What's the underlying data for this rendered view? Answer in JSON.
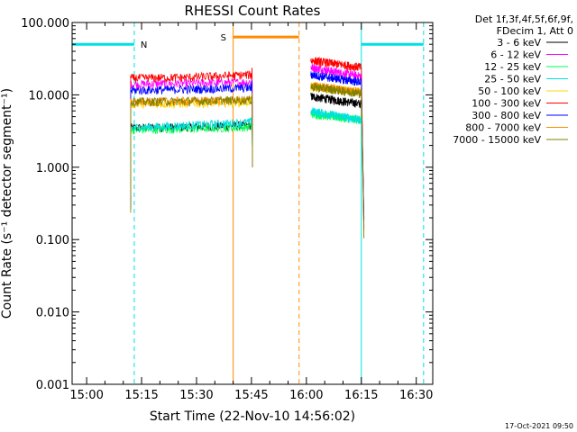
{
  "chart_data": {
    "type": "line",
    "title": "RHESSI Count Rates",
    "xlabel": "Start Time (22-Nov-10 14:56:02)",
    "ylabel": "Count Rate (s⁻¹ detector segment⁻¹)",
    "y_scale": "log",
    "ylim": [
      0.001,
      100
    ],
    "xlim": [
      "14:56:02",
      "16:34:30"
    ],
    "y_ticks": [
      "0.001",
      "0.010",
      "0.100",
      "1.000",
      "10.000",
      "100.000"
    ],
    "x_ticks": [
      "15:00",
      "15:15",
      "15:30",
      "15:45",
      "16:00",
      "16:15",
      "16:30"
    ],
    "legend": {
      "placement": "outside-right",
      "header": [
        "Det 1f,3f,4f,5f,6f,9f,",
        "FDecim 1, Att 0"
      ]
    },
    "series": [
      {
        "name": "3 - 6 keV",
        "color": "#000000",
        "segment1": [
          [
            15.2,
            3.5
          ],
          [
            15.47,
            3.6
          ],
          [
            15.75,
            3.8
          ]
        ],
        "segment2": [
          [
            16.02,
            9.5
          ],
          [
            16.25,
            7.5
          ]
        ]
      },
      {
        "name": "6 - 12 keV",
        "color": "#ff00ff",
        "segment1": [
          [
            15.2,
            14
          ],
          [
            15.47,
            14.5
          ],
          [
            15.75,
            15
          ]
        ],
        "segment2": [
          [
            16.02,
            24
          ],
          [
            16.25,
            18
          ]
        ]
      },
      {
        "name": "12 - 25 keV",
        "color": "#00ff55",
        "segment1": [
          [
            15.2,
            3.3
          ],
          [
            15.47,
            3.4
          ],
          [
            15.75,
            3.6
          ]
        ],
        "segment2": [
          [
            16.02,
            5.5
          ],
          [
            16.25,
            4.5
          ]
        ]
      },
      {
        "name": "25 - 50 keV",
        "color": "#00e0e0",
        "segment1": [
          [
            15.2,
            3.5
          ],
          [
            15.47,
            3.8
          ],
          [
            15.75,
            4.2
          ]
        ],
        "segment2": [
          [
            16.02,
            6
          ],
          [
            16.25,
            4.5
          ]
        ]
      },
      {
        "name": "50 - 100 keV",
        "color": "#ffd700",
        "segment1": [
          [
            15.2,
            7.5
          ],
          [
            15.47,
            7.6
          ],
          [
            15.75,
            8
          ]
        ],
        "segment2": [
          [
            16.02,
            13
          ],
          [
            16.25,
            11
          ]
        ]
      },
      {
        "name": "100 - 300 keV",
        "color": "#ff0000",
        "segment1": [
          [
            15.2,
            17
          ],
          [
            15.47,
            17.5
          ],
          [
            15.75,
            19
          ]
        ],
        "segment2": [
          [
            16.02,
            30
          ],
          [
            16.25,
            24
          ]
        ]
      },
      {
        "name": "300 - 800 keV",
        "color": "#0000ff",
        "segment1": [
          [
            15.2,
            11.5
          ],
          [
            15.47,
            12
          ],
          [
            15.75,
            12.5
          ]
        ],
        "segment2": [
          [
            16.02,
            19
          ],
          [
            16.25,
            15
          ]
        ]
      },
      {
        "name": "800 - 7000 keV",
        "color": "#ff8c00",
        "segment1": [
          [
            15.2,
            8
          ],
          [
            15.47,
            8.2
          ],
          [
            15.75,
            8.5
          ]
        ],
        "segment2": [
          [
            16.02,
            13.5
          ],
          [
            16.25,
            11
          ]
        ]
      },
      {
        "name": "7000 - 15000 keV",
        "color": "#808000",
        "segment1": [
          [
            15.2,
            8
          ],
          [
            15.47,
            8.2
          ],
          [
            15.75,
            8.5
          ]
        ],
        "segment2": [
          [
            16.02,
            13
          ],
          [
            16.25,
            10.5
          ]
        ]
      }
    ],
    "annotations": [
      {
        "label": "N",
        "color": "#00e0e0",
        "bar_level": 50,
        "bars": [
          [
            "14:56:02",
            "15:13"
          ],
          [
            "16:15",
            "16:32"
          ]
        ],
        "solid_edges": [
          "14:56:02",
          "16:15"
        ],
        "dashed_edges": [
          "15:13",
          "16:32"
        ]
      },
      {
        "label": "S",
        "color": "#ff8c00",
        "bar_level": 63,
        "bars": [
          [
            "15:40",
            "15:58"
          ]
        ],
        "solid_edges": [
          "15:40"
        ],
        "dashed_edges": [
          "15:58"
        ]
      }
    ],
    "footer_timestamp": "17-Oct-2021 09:50"
  }
}
